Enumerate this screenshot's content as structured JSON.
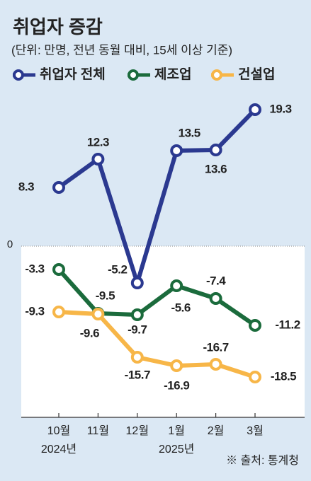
{
  "chart_data": {
    "type": "line",
    "title": "취업자 증감",
    "subtitle": "(단위: 만명, 전년 동월 대비, 15세 이상 기준)",
    "categories": [
      "10월",
      "11월",
      "12월",
      "1월",
      "2월",
      "3월"
    ],
    "year_labels": [
      "2024년",
      null,
      null,
      "2025년",
      null,
      null
    ],
    "series": [
      {
        "name": "취업자 전체",
        "color": "#2b3990",
        "values": [
          8.3,
          12.3,
          -5.2,
          13.5,
          13.6,
          19.3
        ]
      },
      {
        "name": "제조업",
        "color": "#1b6b3c",
        "values": [
          -3.3,
          -9.5,
          -9.7,
          -5.6,
          -7.4,
          -11.2
        ]
      },
      {
        "name": "건설업",
        "color": "#f7b648",
        "values": [
          -9.3,
          -9.6,
          -15.7,
          -16.9,
          -16.7,
          -18.5
        ]
      }
    ],
    "ylim": [
      -24,
      20
    ],
    "yticks": [
      0
    ],
    "source": "※ 출처: 통계청"
  }
}
